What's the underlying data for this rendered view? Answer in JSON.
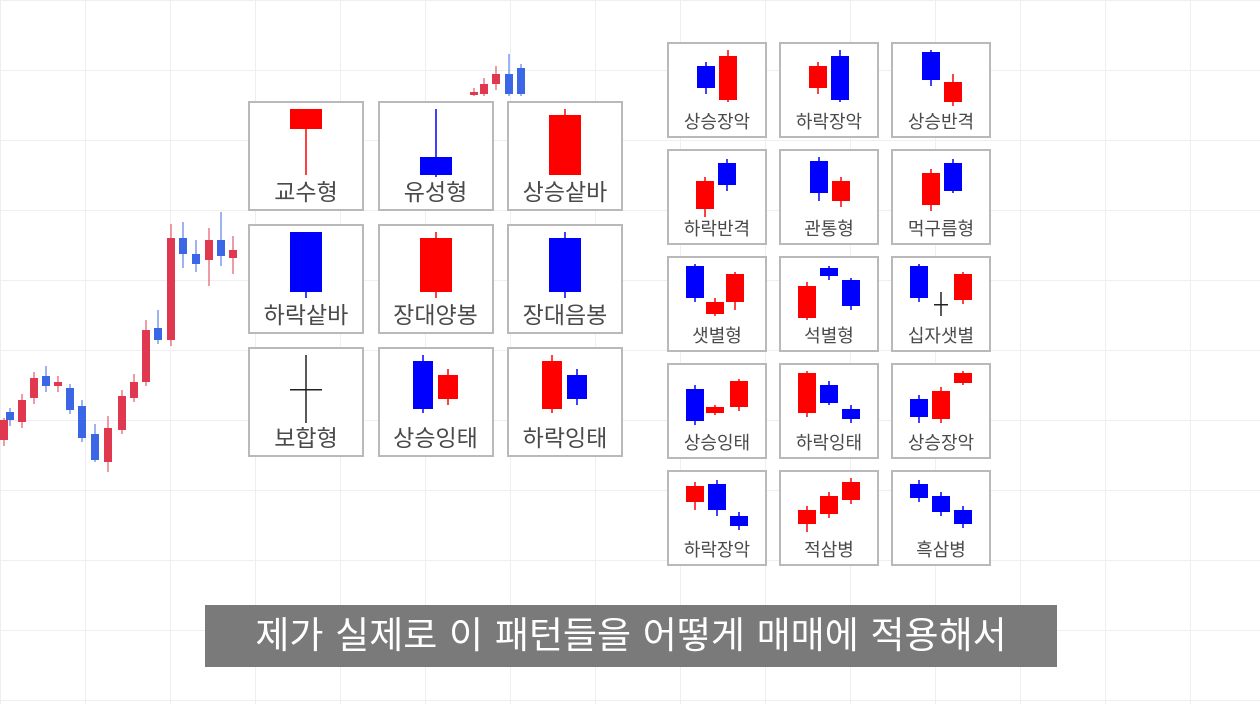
{
  "colors": {
    "up": "#ff0000",
    "down": "#0000ff",
    "neutral": "#222222",
    "bg_up": "#e0394f",
    "bg_down": "#3b67e6"
  },
  "patterns_main": [
    {
      "label": "교수형",
      "icon": "hanging-man"
    },
    {
      "label": "유성형",
      "icon": "shooting-star"
    },
    {
      "label": "상승샅바",
      "icon": "bullish-belt-hold"
    },
    {
      "label": "하락샅바",
      "icon": "bearish-belt-hold"
    },
    {
      "label": "장대양봉",
      "icon": "long-bullish-candle"
    },
    {
      "label": "장대음봉",
      "icon": "long-bearish-candle"
    },
    {
      "label": "보합형",
      "icon": "doji"
    },
    {
      "label": "상승잉태",
      "icon": "bullish-harami"
    },
    {
      "label": "하락잉태",
      "icon": "bearish-harami"
    }
  ],
  "patterns_side": [
    {
      "label": "상승장악",
      "icon": "bullish-engulfing"
    },
    {
      "label": "하락장악",
      "icon": "bearish-engulfing"
    },
    {
      "label": "상승반격",
      "icon": "bullish-counterattack"
    },
    {
      "label": "하락반격",
      "icon": "bearish-counterattack"
    },
    {
      "label": "관통형",
      "icon": "piercing-line"
    },
    {
      "label": "먹구름형",
      "icon": "dark-cloud-cover"
    },
    {
      "label": "샛별형",
      "icon": "morning-star"
    },
    {
      "label": "석별형",
      "icon": "evening-star"
    },
    {
      "label": "십자샛별",
      "icon": "doji-morning-star"
    },
    {
      "label": "상승잉태",
      "icon": "three-inside-up"
    },
    {
      "label": "하락잉태",
      "icon": "three-inside-down"
    },
    {
      "label": "상승장악",
      "icon": "three-outside-up"
    },
    {
      "label": "하락장악",
      "icon": "three-outside-down"
    },
    {
      "label": "적삼병",
      "icon": "three-white-soldiers"
    },
    {
      "label": "흑삼병",
      "icon": "three-black-crows"
    }
  ],
  "subtitle": "제가 실제로 이 패턴들을 어떻게 매매에 적용해서"
}
